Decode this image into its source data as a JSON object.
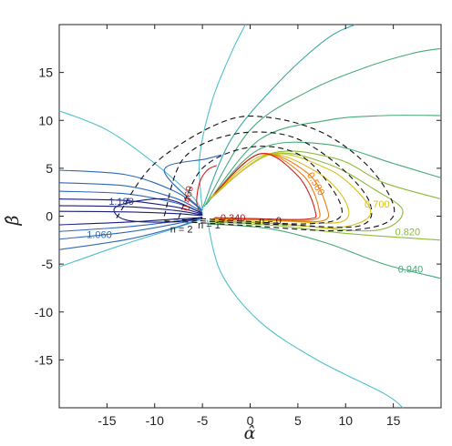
{
  "chart_data": {
    "type": "contour",
    "xlabel": "α̂",
    "ylabel": "β̂",
    "xlim": [
      -20,
      20
    ],
    "ylim": [
      -20,
      20
    ],
    "xticks": [
      -15,
      -10,
      -5,
      0,
      5,
      10,
      15
    ],
    "yticks": [
      -15,
      -10,
      -5,
      0,
      5,
      10,
      15
    ],
    "xtick_labels": [
      "-15",
      "-10",
      "-5",
      "0",
      "5",
      "10",
      "15"
    ],
    "ytick_labels": [
      "-15",
      "-10",
      "-5",
      "0",
      "5",
      "10",
      "15"
    ],
    "grid": false,
    "contour_labels": [
      {
        "text": "1.180",
        "x": -13.5,
        "y": 1.2,
        "color": "#2e3f9a"
      },
      {
        "text": "1.060",
        "x": -15.8,
        "y": -2.3,
        "color": "#2f68b8"
      },
      {
        "text": "0.340",
        "x": -1.8,
        "y": -0.5,
        "color": "#b01515"
      },
      {
        "text": "0.460",
        "x": -6.2,
        "y": 1.8,
        "color": "#d02020",
        "rotate": -80
      },
      {
        "text": "0.580",
        "x": 6.6,
        "y": 3.2,
        "color": "#f07d10",
        "rotate": 60
      },
      {
        "text": "0.700",
        "x": 13.3,
        "y": 0.9,
        "color": "#d8c020"
      },
      {
        "text": "0.820",
        "x": 16.5,
        "y": -2.0,
        "color": "#8cbc3a"
      },
      {
        "text": "0.940",
        "x": 16.8,
        "y": -5.9,
        "color": "#46aa78"
      }
    ],
    "photon_ring_labels": [
      {
        "text": "n = 0",
        "x": 2.1,
        "y": -0.8
      },
      {
        "text": "n = 1",
        "x": -4.3,
        "y": -1.3
      },
      {
        "text": "n = 2",
        "x": -7.2,
        "y": -1.7
      }
    ],
    "colors": {
      "cyan": "#4fc0cf",
      "teal": "#3aa8a8",
      "dark_blue": "#1c1f7a",
      "blue": "#2f68b8",
      "red": "#d02020",
      "orange": "#f07d10",
      "yellow": "#d8c020",
      "green": "#8cbc3a",
      "sea_green": "#46aa78"
    }
  }
}
